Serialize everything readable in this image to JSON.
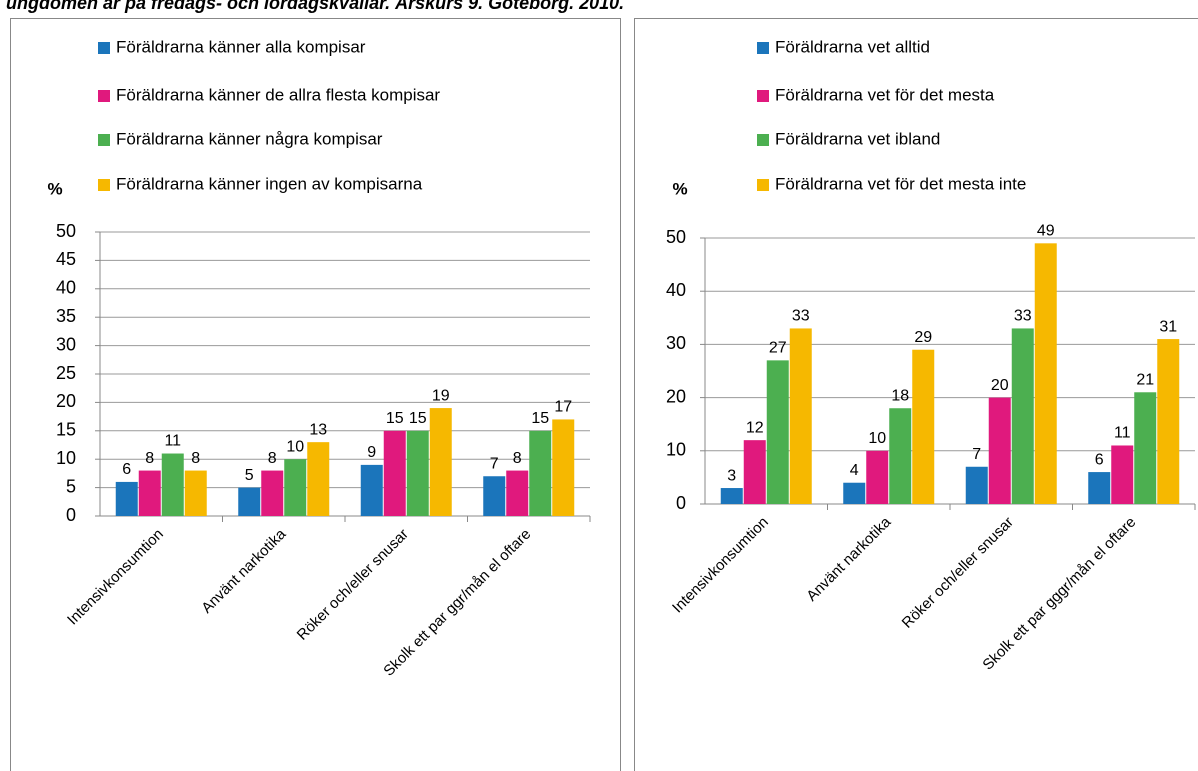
{
  "title": "ungdomen är på fredags- och lördagskvällar. Årskurs 9. Göteborg. 2010.",
  "chart_data": [
    {
      "type": "bar",
      "ylabel": "%",
      "categories": [
        "Intensivkonsumtion",
        "Använt narkotika",
        "Röker och/eller snusar",
        "Skolk ett par ggr/mån el oftare"
      ],
      "series": [
        {
          "name": "Föräldrarna känner alla kompisar",
          "color": "#1b75bb",
          "values": [
            6,
            5,
            9,
            7
          ]
        },
        {
          "name": "Föräldrarna känner de allra flesta kompisar",
          "color": "#e0197d",
          "values": [
            8,
            8,
            15,
            8
          ]
        },
        {
          "name": "Föräldrarna känner några kompisar",
          "color": "#4caf50",
          "values": [
            11,
            10,
            15,
            15
          ]
        },
        {
          "name": "Föräldrarna känner ingen av kompisarna",
          "color": "#f6b800",
          "values": [
            8,
            13,
            19,
            17
          ]
        }
      ],
      "ylim": [
        0,
        50
      ],
      "yticks": [
        0,
        5,
        10,
        15,
        20,
        25,
        30,
        35,
        40,
        45,
        50
      ],
      "grid": true
    },
    {
      "type": "bar",
      "ylabel": "%",
      "categories": [
        "Intensivkonsumtion",
        "Använt narkotika",
        "Röker och/eller snusar",
        "Skolk ett par gggr/mån el oftare"
      ],
      "series": [
        {
          "name": "Föräldrarna vet alltid",
          "color": "#1b75bb",
          "values": [
            3,
            4,
            7,
            6
          ]
        },
        {
          "name": "Föräldrarna vet för det mesta",
          "color": "#e0197d",
          "values": [
            12,
            10,
            20,
            11
          ]
        },
        {
          "name": "Föräldrarna vet ibland",
          "color": "#4caf50",
          "values": [
            27,
            18,
            33,
            21
          ]
        },
        {
          "name": "Föräldrarna vet för det mesta inte",
          "color": "#f6b800",
          "values": [
            33,
            29,
            49,
            31
          ]
        }
      ],
      "ylim": [
        0,
        50
      ],
      "yticks": [
        0,
        10,
        20,
        30,
        40,
        50
      ],
      "grid": true
    }
  ]
}
